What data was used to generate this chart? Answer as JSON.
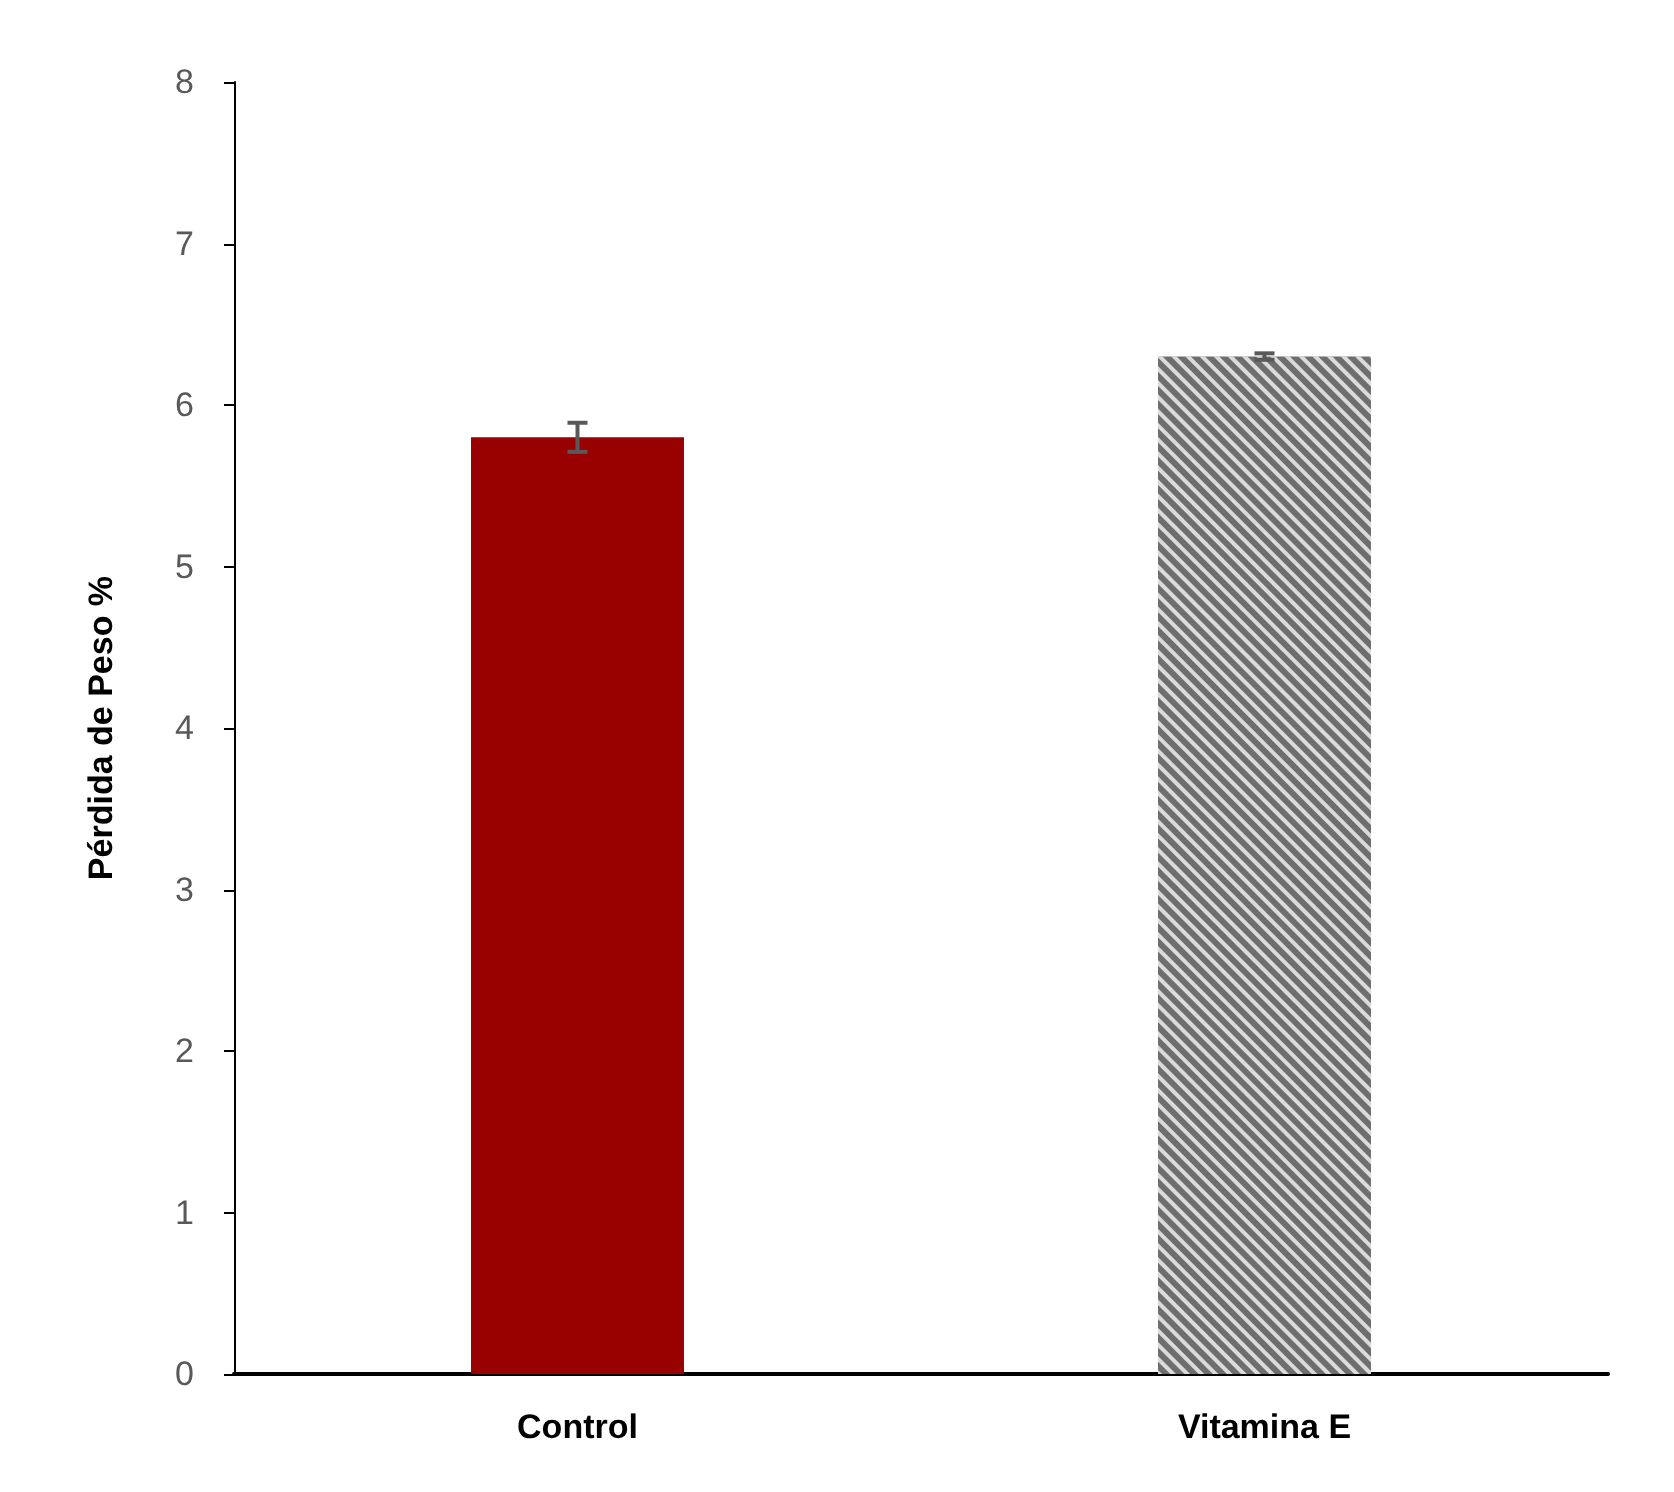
{
  "chart_data": {
    "type": "bar",
    "ylabel": "Pérdida de Peso %",
    "categories": [
      "Control",
      "Vitamina E"
    ],
    "values": [
      5.8,
      6.3
    ],
    "colors": [
      "#990000",
      "#6e6e6e"
    ],
    "errors": [
      0.09,
      0.02
    ],
    "ylim": [
      0,
      8
    ],
    "yticks": [
      0,
      1,
      2,
      3,
      4,
      5,
      6,
      7,
      8
    ],
    "grid": false
  }
}
